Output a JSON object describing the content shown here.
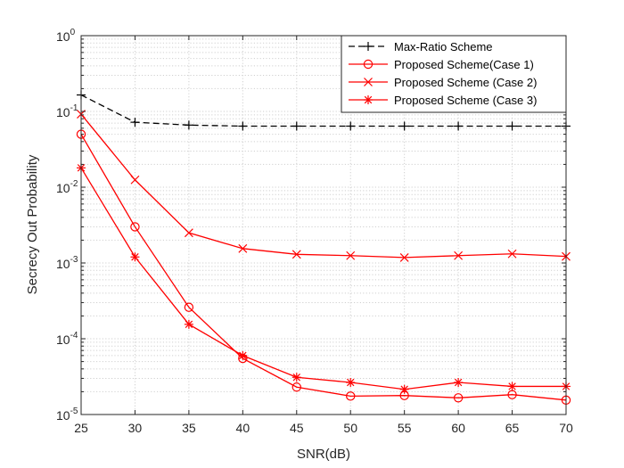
{
  "chart_data": {
    "type": "line",
    "title": "",
    "xlabel": "SNR(dB)",
    "ylabel": "Secrecy Out Probability",
    "x": [
      25,
      30,
      35,
      40,
      45,
      50,
      55,
      60,
      65,
      70
    ],
    "xlim": [
      25,
      70
    ],
    "xticks": [
      "25",
      "30",
      "35",
      "40",
      "45",
      "50",
      "55",
      "60",
      "65",
      "70"
    ],
    "yscale": "log",
    "ylim": [
      1e-05,
      1
    ],
    "yticks": [
      {
        "base": "10",
        "exp": "0"
      },
      {
        "base": "10",
        "exp": "-1"
      },
      {
        "base": "10",
        "exp": "-2"
      },
      {
        "base": "10",
        "exp": "-3"
      },
      {
        "base": "10",
        "exp": "-4"
      },
      {
        "base": "10",
        "exp": "-5"
      }
    ],
    "grid": true,
    "legend_position": "top-right",
    "series": [
      {
        "name": "Max-Ratio Scheme",
        "color": "#000000",
        "dash": true,
        "marker": "plus",
        "values": [
          0.165,
          0.072,
          0.066,
          0.064,
          0.064,
          0.064,
          0.064,
          0.064,
          0.064,
          0.064
        ]
      },
      {
        "name": "Proposed Scheme(Case 1)",
        "color": "#ff0000",
        "dash": false,
        "marker": "circle",
        "values": [
          0.05,
          0.003,
          0.00026,
          5.5e-05,
          2.3e-05,
          1.75e-05,
          1.78e-05,
          1.66e-05,
          1.83e-05,
          1.55e-05
        ]
      },
      {
        "name": "Proposed Scheme (Case 2)",
        "color": "#ff0000",
        "dash": false,
        "marker": "x",
        "values": [
          0.092,
          0.0125,
          0.0025,
          0.00155,
          0.0013,
          0.00125,
          0.00118,
          0.00125,
          0.00132,
          0.00122
        ]
      },
      {
        "name": "Proposed Scheme (Case 3)",
        "color": "#ff0000",
        "dash": false,
        "marker": "asterisk",
        "values": [
          0.018,
          0.0012,
          0.000155,
          6e-05,
          3.1e-05,
          2.65e-05,
          2.15e-05,
          2.65e-05,
          2.35e-05,
          2.35e-05
        ]
      }
    ]
  }
}
